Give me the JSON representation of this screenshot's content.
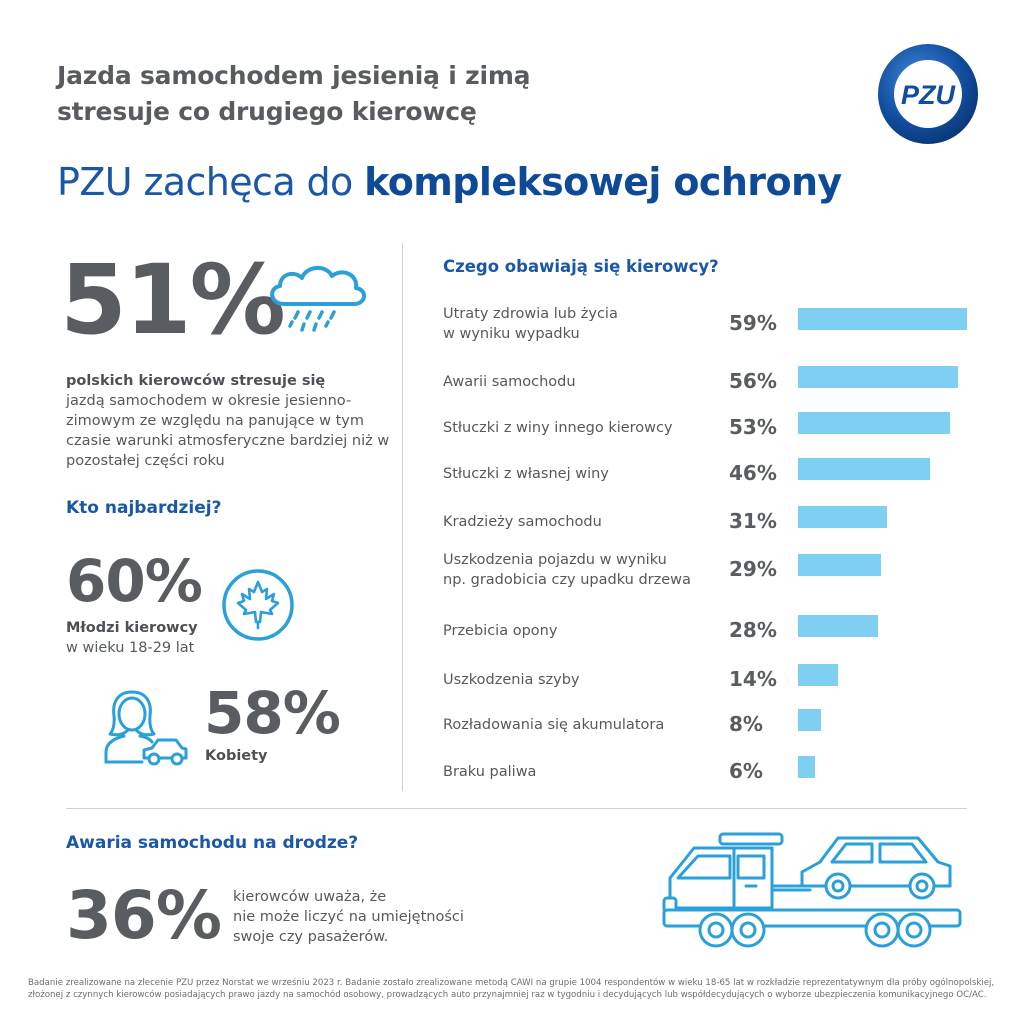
{
  "header": {
    "title_line1": "Jazda samochodem jesienią i zimą",
    "title_line2": "stresuje co drugiego kierowcę",
    "subtitle_normal": "PZU zachęca do ",
    "subtitle_bold": "kompleksowej ochrony",
    "logo_text": "PZU"
  },
  "stat_51": {
    "value": "51%",
    "bold_text": "polskich kierowców stresuje się",
    "text": "jazdą samochodem w okresie jesienno-zimowym ze względu na panujące w tym czasie warunki atmosferyczne bardziej niż w pozostałej części roku"
  },
  "who": {
    "heading": "Kto najbardziej?",
    "young_value": "60%",
    "young_bold": "Młodzi kierowcy",
    "young_text": "w wieku 18-29 lat",
    "women_value": "58%",
    "women_label": "Kobiety"
  },
  "chart_data": {
    "type": "bar",
    "orientation": "horizontal",
    "title": "Czego obawiają się kierowcy?",
    "categories": [
      "Utraty zdrowia lub życia w wyniku wypadku",
      "Awarii samochodu",
      "Stłuczki z winy innego kierowcy",
      "Stłuczki z własnej winy",
      "Kradzieży samochodu",
      "Uszkodzenia pojazdu w wyniku np. gradobicia czy upadku drzewa",
      "Przebicia opony",
      "Uszkodzenia szyby",
      "Rozładowania się akumulatora",
      "Braku paliwa"
    ],
    "label_lines": [
      [
        "Utraty zdrowia lub życia",
        "w wyniku wypadku"
      ],
      [
        "Awarii samochodu"
      ],
      [
        "Stłuczki z winy innego kierowcy"
      ],
      [
        "Stłuczki z własnej winy"
      ],
      [
        "Kradzieży samochodu"
      ],
      [
        "Uszkodzenia pojazdu w wyniku",
        "np. gradobicia czy upadku drzewa"
      ],
      [
        "Przebicia opony"
      ],
      [
        "Uszkodzenia szyby"
      ],
      [
        "Rozładowania się akumulatora"
      ],
      [
        "Braku paliwa"
      ]
    ],
    "values": [
      59,
      56,
      53,
      46,
      31,
      29,
      28,
      14,
      8,
      6
    ],
    "value_labels": [
      "59%",
      "56%",
      "53%",
      "46%",
      "31%",
      "29%",
      "28%",
      "14%",
      "8%",
      "6%"
    ],
    "unit": "%",
    "bar_color": "#7ecff2",
    "grid": false
  },
  "breakdown": {
    "heading": "Awaria samochodu na drodze?",
    "value": "36%",
    "text_line1": "kierowców uważa, że",
    "text_line2": "nie może liczyć na umiejętności",
    "text_line3": "swoje czy pasażerów."
  },
  "footnote": "Badanie zrealizowane na zlecenie PZU przez Norstat we wrześniu 2023 r. Badanie zostało zrealizowane metodą CAWI na grupie 1004 respondentów w wieku 18-65 lat w rozkładzie reprezentatywnym dla próby ogólnopolskiej, złożonej z czynnych kierowców posiadających prawo jazdy na samochód osobowy, prowadzących auto przynajmniej raz w tygodniu i decydujących lub współdecydujących o wyborze ubezpieczenia komunikacyjnego OC/AC.",
  "colors": {
    "brand_blue": "#1a57a6",
    "dark_text": "#595d61",
    "bar": "#7ecff2",
    "icon": "#2a9fd8"
  },
  "icons": [
    "rain-cloud-icon",
    "maple-leaf-icon",
    "woman-car-icon",
    "tow-truck-icon",
    "pzu-logo"
  ]
}
